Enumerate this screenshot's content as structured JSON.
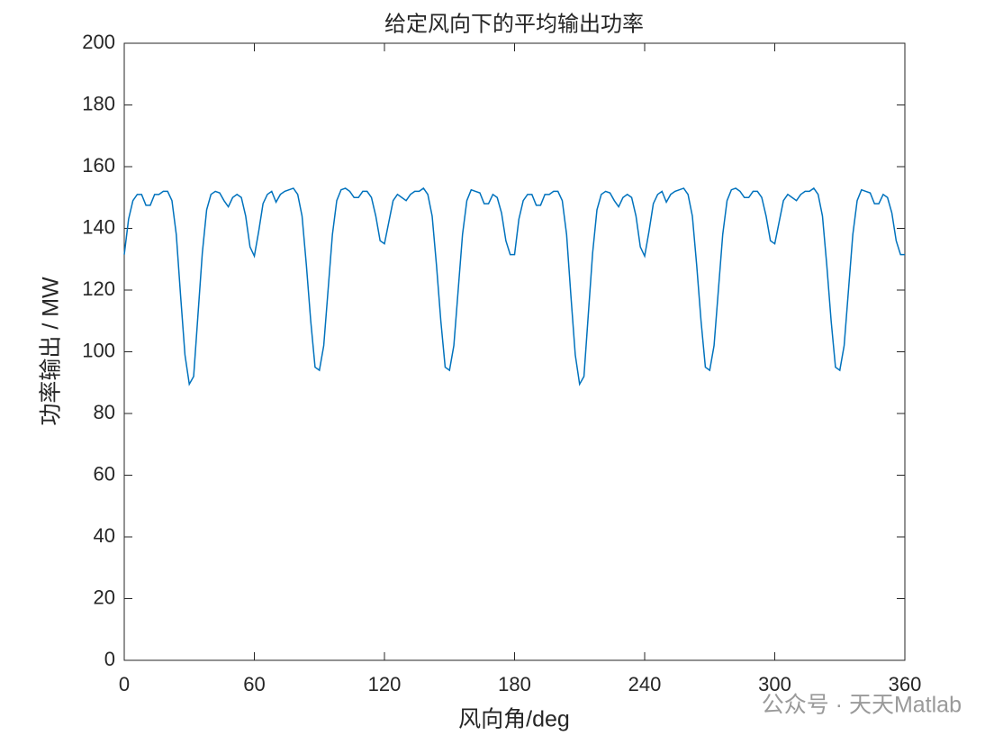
{
  "chart_data": {
    "type": "line",
    "title": "给定风向下的平均输出功率",
    "xlabel": "风向角/deg",
    "ylabel": "功率输出 / MW",
    "watermark": "公众号 · 天天Matlab",
    "x": [
      0,
      2,
      4,
      6,
      8,
      10,
      12,
      14,
      16,
      18,
      20,
      22,
      24,
      26,
      28,
      30,
      32,
      34,
      36,
      38,
      40,
      42,
      44,
      46,
      48,
      50,
      52,
      54,
      56,
      58,
      60,
      62,
      64,
      66,
      68,
      70,
      72,
      74,
      76,
      78,
      80,
      82,
      84,
      86,
      88,
      90,
      92,
      94,
      96,
      98,
      100,
      102,
      104,
      106,
      108,
      110,
      112,
      114,
      116,
      118,
      120,
      122,
      124,
      126,
      128,
      130,
      132,
      134,
      136,
      138,
      140,
      142,
      144,
      146,
      148,
      150,
      152,
      154,
      156,
      158,
      160,
      162,
      164,
      166,
      168,
      170,
      172,
      174,
      176,
      178,
      180,
      182,
      184,
      186,
      188,
      190,
      192,
      194,
      196,
      198,
      200,
      202,
      204,
      206,
      208,
      210,
      212,
      214,
      216,
      218,
      220,
      222,
      224,
      226,
      228,
      230,
      232,
      234,
      236,
      238,
      240,
      242,
      244,
      246,
      248,
      250,
      252,
      254,
      256,
      258,
      260,
      262,
      264,
      266,
      268,
      270,
      272,
      274,
      276,
      278,
      280,
      282,
      284,
      286,
      288,
      290,
      292,
      294,
      296,
      298,
      300,
      302,
      304,
      306,
      308,
      310,
      312,
      314,
      316,
      318,
      320,
      322,
      324,
      326,
      328,
      330,
      332,
      334,
      336,
      338,
      340,
      342,
      344,
      346,
      348,
      350,
      352,
      354,
      356,
      358,
      360
    ],
    "series": [
      {
        "name": "power",
        "color": "#0072BD",
        "values": [
          131.5,
          143,
          149,
          151,
          151,
          147.5,
          147.5,
          151,
          151,
          152,
          152,
          149,
          138,
          118,
          99,
          89.5,
          92,
          112,
          132,
          146,
          151,
          152,
          151.5,
          149,
          147,
          150,
          151,
          150,
          144,
          134,
          131,
          139,
          148,
          151,
          152,
          148.5,
          151,
          152,
          152.5,
          153,
          151,
          144,
          128,
          110,
          95,
          94,
          102,
          120,
          138,
          149,
          152.5,
          153,
          152,
          150,
          150,
          152,
          152,
          150,
          144,
          136,
          135,
          142,
          149,
          151,
          150,
          149,
          151,
          152,
          152,
          153,
          151,
          144,
          128,
          110,
          95,
          94,
          102,
          120,
          138,
          149,
          152.5,
          152,
          151.5,
          148,
          148,
          151,
          150,
          145,
          136,
          131.5,
          131.5,
          143,
          149,
          151,
          151,
          147.5,
          147.5,
          151,
          151,
          152,
          152,
          149,
          138,
          118,
          99,
          89.5,
          92,
          112,
          132,
          146,
          151,
          152,
          151.5,
          149,
          147,
          150,
          151,
          150,
          144,
          134,
          131,
          139,
          148,
          151,
          152,
          148.5,
          151,
          152,
          152.5,
          153,
          151,
          144,
          128,
          110,
          95,
          94,
          102,
          120,
          138,
          149,
          152.5,
          153,
          152,
          150,
          150,
          152,
          152,
          150,
          144,
          136,
          135,
          142,
          149,
          151,
          150,
          149,
          151,
          152,
          152,
          153,
          151,
          144,
          128,
          110,
          95,
          94,
          102,
          120,
          138,
          149,
          152.5,
          152,
          151.5,
          148,
          148,
          151,
          150,
          145,
          136,
          131.5,
          131.5
        ]
      }
    ],
    "xlim": [
      0,
      360
    ],
    "xticks": [
      0,
      60,
      120,
      180,
      240,
      300,
      360
    ],
    "ylim": [
      0,
      200
    ],
    "yticks": [
      0,
      20,
      40,
      60,
      80,
      100,
      120,
      140,
      160,
      180,
      200
    ]
  }
}
